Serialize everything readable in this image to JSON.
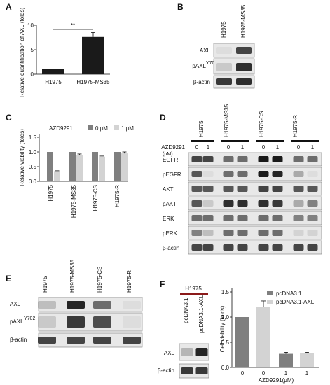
{
  "panels": {
    "A": {
      "label": "A",
      "chart_data": {
        "type": "bar",
        "categories": [
          "H1975",
          "H1975-MS35"
        ],
        "values": [
          1.0,
          7.6
        ],
        "errors": [
          0,
          0.9
        ],
        "ylabel": "Relative quantification of AXL (folds)",
        "yticks": [
          "0",
          "5",
          "10"
        ],
        "ylim": [
          0,
          10
        ],
        "significance": "**",
        "colors": [
          "#1a1a1a",
          "#1a1a1a"
        ]
      }
    },
    "B": {
      "label": "B",
      "lanes": [
        "H1975",
        "H1975-MS35"
      ],
      "rows": [
        "AXL",
        "pAXL",
        "β-actin"
      ],
      "superscript": "Y702",
      "intensity": [
        [
          0.05,
          0.8
        ],
        [
          0.15,
          0.9
        ],
        [
          0.85,
          0.9
        ]
      ]
    },
    "C": {
      "label": "C",
      "chart_data": {
        "type": "bar",
        "title": "AZD9291",
        "categories": [
          "H1975",
          "H1975-MS35",
          "H1975-CS",
          "H1975-R"
        ],
        "series": [
          {
            "name": "0 μM",
            "values": [
              1.0,
              1.0,
              1.0,
              1.0
            ],
            "color": "#7f7f7f"
          },
          {
            "name": "1 μM",
            "values": [
              0.35,
              0.88,
              0.84,
              0.95
            ],
            "color": "#d3d3d3"
          }
        ],
        "errors": [
          [
            0,
            0,
            0,
            0
          ],
          [
            0.01,
            0.05,
            0.02,
            0.05
          ]
        ],
        "ylabel": "Relative viability (folds)",
        "yticks": [
          "0.0",
          "0.5",
          "1.0",
          "1.5"
        ],
        "ylim": [
          0,
          1.5
        ]
      }
    },
    "D": {
      "label": "D",
      "lines": [
        "H1975",
        "H1975-MS35",
        "H1975-CS",
        "H1975-R"
      ],
      "treatment_label": "AZD9291",
      "treatment_unit": "(μM)",
      "doses": [
        "0",
        "1",
        "0",
        "1",
        "0",
        "1",
        "0",
        "1"
      ],
      "rows": [
        "EGFR",
        "pEGFR",
        "AKT",
        "pAKT",
        "ERK",
        "pERK",
        "β-actin"
      ],
      "intensity": [
        [
          0.8,
          0.8,
          0.6,
          0.6,
          1.0,
          1.0,
          0.6,
          0.6
        ],
        [
          0.7,
          0.05,
          0.6,
          0.6,
          1.0,
          0.95,
          0.3,
          0.05
        ],
        [
          0.7,
          0.7,
          0.7,
          0.7,
          0.8,
          0.8,
          0.7,
          0.7
        ],
        [
          0.7,
          0.15,
          0.9,
          0.9,
          0.9,
          0.85,
          0.3,
          0.5
        ],
        [
          0.6,
          0.6,
          0.6,
          0.6,
          0.6,
          0.6,
          0.5,
          0.5
        ],
        [
          0.5,
          0.2,
          0.6,
          0.6,
          0.6,
          0.6,
          0.1,
          0.1
        ],
        [
          0.8,
          0.8,
          0.8,
          0.8,
          0.8,
          0.8,
          0.8,
          0.8
        ]
      ]
    },
    "E": {
      "label": "E",
      "lanes": [
        "H1975",
        "H1975-MS35",
        "H1975-CS",
        "H1975-R"
      ],
      "rows": [
        "AXL",
        "pAXL",
        "β-actin"
      ],
      "superscript": "Y702",
      "intensity": [
        [
          0.2,
          0.95,
          0.6,
          0.05
        ],
        [
          0.15,
          0.85,
          0.75,
          0.05
        ],
        [
          0.8,
          0.8,
          0.8,
          0.8
        ]
      ]
    },
    "F": {
      "label": "F",
      "blot_title": "H1975",
      "lanes": [
        "pcDNA3.1",
        "pcDNA3.1-AXL"
      ],
      "rows": [
        "AXL",
        "β-actin"
      ],
      "intensity": [
        [
          0.25,
          0.95
        ],
        [
          0.85,
          0.85
        ]
      ],
      "chart_data": {
        "type": "bar",
        "categories": [
          "0",
          "0",
          "1",
          "1"
        ],
        "values": [
          1.0,
          1.2,
          0.27,
          0.28
        ],
        "errors": [
          0,
          0.12,
          0.03,
          0.02
        ],
        "colors": [
          "#7f7f7f",
          "#d3d3d3",
          "#7f7f7f",
          "#d3d3d3"
        ],
        "legend": [
          {
            "name": "pcDNA3.1",
            "color": "#7f7f7f"
          },
          {
            "name": "pcDNA3.1-AXL",
            "color": "#d3d3d3"
          }
        ],
        "xlabel": "AZD9291(μM)",
        "ylabel": "Cell viability (folds)",
        "yticks": [
          "0.0",
          "0.5",
          "1.0",
          "1.5"
        ],
        "ylim": [
          0,
          1.5
        ]
      }
    }
  }
}
